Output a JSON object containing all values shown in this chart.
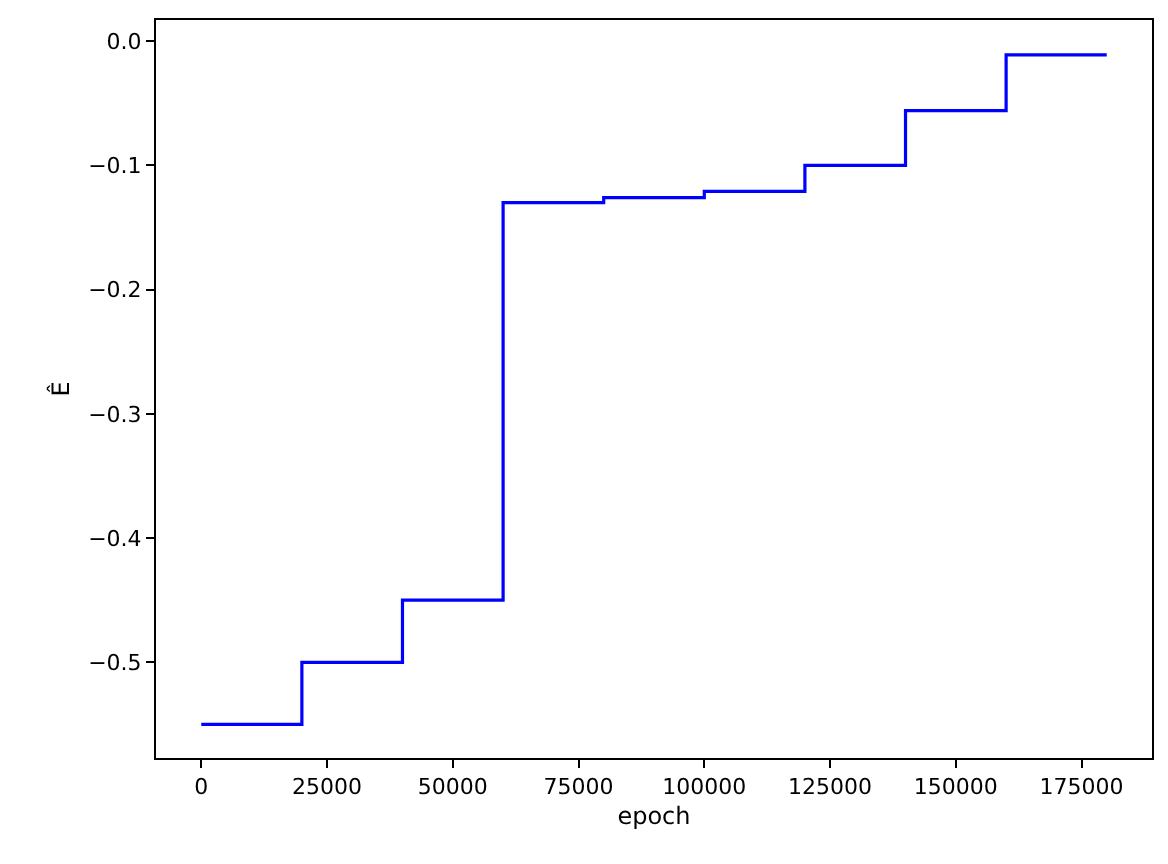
{
  "chart_data": {
    "type": "step",
    "xlabel": "epoch",
    "ylabel": "Ê",
    "x": [
      0,
      20000,
      40000,
      60000,
      80000,
      100000,
      120000,
      140000,
      160000,
      180000
    ],
    "series": [
      {
        "color": "#0000ff",
        "values": [
          -0.55,
          -0.5,
          -0.45,
          -0.13,
          -0.126,
          -0.121,
          -0.1,
          -0.056,
          -0.011,
          -0.011
        ]
      }
    ],
    "xlim": [
      -9000,
      189000
    ],
    "xticks": [
      0,
      25000,
      50000,
      75000,
      100000,
      125000,
      150000,
      175000
    ],
    "ylim": [
      -0.577,
      0.017
    ],
    "yticks": [
      {
        "value": -0.5,
        "label": "−0.5"
      },
      {
        "value": -0.4,
        "label": "−0.4"
      },
      {
        "value": -0.3,
        "label": "−0.3"
      },
      {
        "value": -0.2,
        "label": "−0.2"
      },
      {
        "value": -0.1,
        "label": "−0.1"
      },
      {
        "value": 0,
        "label": "0.0"
      }
    ]
  }
}
